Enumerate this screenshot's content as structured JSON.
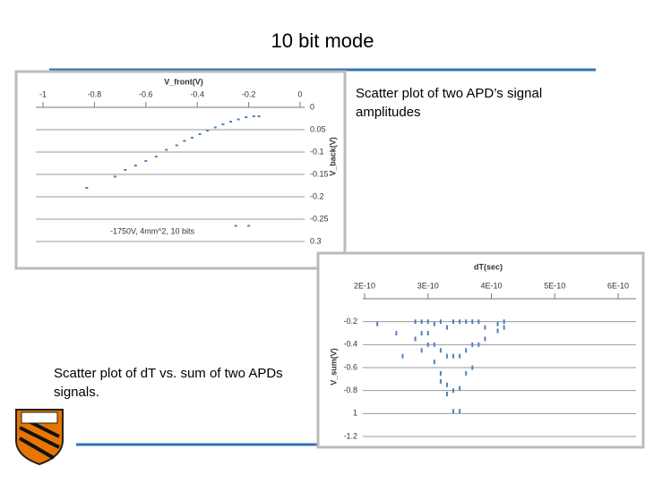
{
  "title": "10 bit mode",
  "captions": [
    "Scatter plot of two APD’s signal amplitudes",
    "Scatter plot of dT vs. sum of two APDs signals."
  ],
  "chart_data": [
    {
      "type": "scatter",
      "title": "V_front(V)",
      "y_label": "V_back(V)",
      "annotation": "-1750V, 4mm^2, 10 bits",
      "color": "#4f81bd",
      "grid": true,
      "x": [
        -0.83,
        -0.72,
        -0.68,
        -0.64,
        -0.6,
        -0.56,
        -0.52,
        -0.48,
        -0.45,
        -0.42,
        -0.39,
        -0.36,
        -0.33,
        -0.3,
        -0.27,
        -0.24,
        -0.21,
        -0.18,
        -0.16,
        -0.25,
        -0.2
      ],
      "values": [
        -0.18,
        -0.155,
        -0.14,
        -0.13,
        -0.12,
        -0.11,
        -0.095,
        -0.085,
        -0.075,
        -0.068,
        -0.06,
        -0.052,
        -0.045,
        -0.038,
        -0.032,
        -0.027,
        -0.022,
        -0.02,
        -0.02,
        -0.265,
        -0.265
      ],
      "xlim": [
        -1,
        0
      ],
      "ylim": [
        -0.3,
        0
      ],
      "xticks": [
        -1,
        -0.8,
        -0.6,
        -0.4,
        -0.2,
        0
      ],
      "yticks": [
        0,
        {
          "value": -0.05,
          "label": "0.05"
        },
        -0.1,
        -0.15,
        -0.2,
        -0.25,
        {
          "value": -0.3,
          "label": "0.3"
        }
      ]
    },
    {
      "type": "scatter",
      "title": "dT(sec)",
      "y_label": "V_sum(V)",
      "color": "#4f81bd",
      "grid": true,
      "x": [
        2.2e-10,
        2.5e-10,
        2.6e-10,
        2.8e-10,
        2.8e-10,
        2.9e-10,
        2.9e-10,
        2.9e-10,
        3e-10,
        3e-10,
        3e-10,
        3.1e-10,
        3.1e-10,
        3.1e-10,
        3.2e-10,
        3.2e-10,
        3.2e-10,
        3.2e-10,
        3.3e-10,
        3.3e-10,
        3.3e-10,
        3.3e-10,
        3.4e-10,
        3.4e-10,
        3.4e-10,
        3.4e-10,
        3.5e-10,
        3.5e-10,
        3.5e-10,
        3.5e-10,
        3.6e-10,
        3.6e-10,
        3.6e-10,
        3.7e-10,
        3.7e-10,
        3.7e-10,
        3.8e-10,
        3.8e-10,
        3.9e-10,
        3.9e-10,
        4.1e-10,
        4.1e-10,
        4.2e-10,
        4.2e-10
      ],
      "values": [
        -0.22,
        -0.3,
        -0.5,
        -0.2,
        -0.35,
        -0.2,
        -0.3,
        -0.45,
        -0.2,
        -0.3,
        -0.4,
        -0.22,
        -0.4,
        -0.55,
        -0.2,
        -0.45,
        -0.65,
        -0.72,
        -0.25,
        -0.5,
        -0.75,
        -0.83,
        -0.2,
        -0.5,
        -0.8,
        -0.98,
        -0.2,
        -0.5,
        -0.78,
        -0.98,
        -0.2,
        -0.45,
        -0.65,
        -0.2,
        -0.4,
        -0.6,
        -0.2,
        -0.4,
        -0.25,
        -0.35,
        -0.22,
        -0.28,
        -0.2,
        -0.25
      ],
      "xlim": [
        2e-10,
        6e-10
      ],
      "ylim": [
        -1.2,
        0
      ],
      "xticks": [
        {
          "value": 2e-10,
          "label": "2E-10"
        },
        {
          "value": 3e-10,
          "label": "3E-10"
        },
        {
          "value": 4e-10,
          "label": "4E-10"
        },
        {
          "value": 5e-10,
          "label": "5E-10"
        },
        {
          "value": 6e-10,
          "label": "6E-10"
        }
      ],
      "yticks": [
        -0.2,
        -0.4,
        -0.6,
        -0.8,
        {
          "value": -1,
          "label": "1"
        },
        -1.2
      ]
    }
  ]
}
